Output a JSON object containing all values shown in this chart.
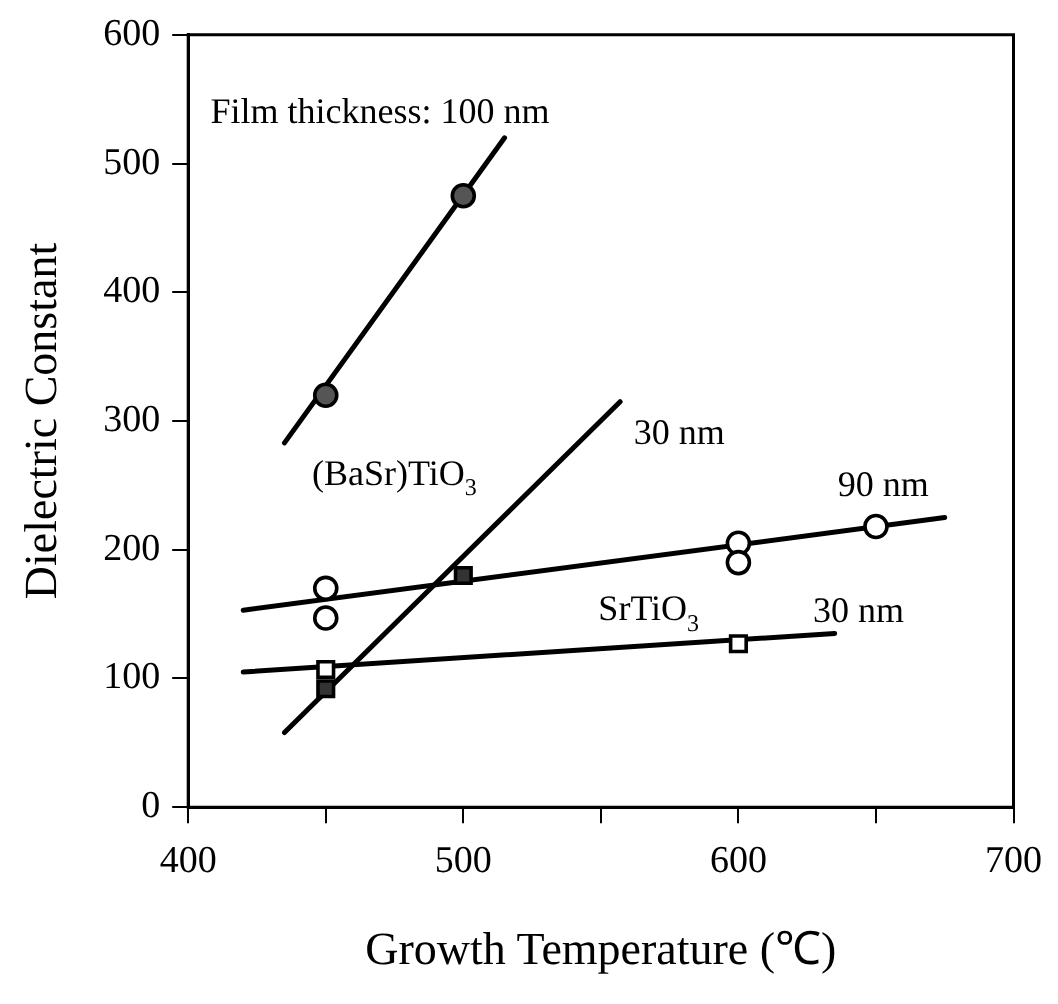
{
  "chart_data": {
    "type": "scatter",
    "xlabel": "Growth Temperature (℃)",
    "ylabel": "Dielectric Constant",
    "xlim": [
      400,
      700
    ],
    "xticks": [
      400,
      {
        "value": 450,
        "label": null
      },
      500,
      {
        "value": 550,
        "label": null
      },
      600,
      {
        "value": 650,
        "label": null
      },
      700
    ],
    "ylim": [
      0,
      600
    ],
    "yticks": [
      0,
      100,
      200,
      300,
      400,
      500,
      600
    ],
    "grid": false,
    "legend": false,
    "series": [
      {
        "type": "line",
        "color": "#000000",
        "x": [
          435,
          515
        ],
        "values": [
          283,
          520
        ]
      },
      {
        "type": "line",
        "color": "#000000",
        "x": [
          435,
          557
        ],
        "values": [
          58,
          315
        ]
      },
      {
        "type": "line",
        "color": "#000000",
        "x": [
          420,
          675
        ],
        "values": [
          153,
          225
        ]
      },
      {
        "type": "line",
        "color": "#000000",
        "x": [
          420,
          635
        ],
        "values": [
          105,
          135
        ]
      },
      {
        "type": "scatter",
        "marker": "circle",
        "color": "#555555",
        "x": [
          450,
          500
        ],
        "values": [
          320,
          475
        ]
      },
      {
        "type": "scatter",
        "marker": "square",
        "color": "#333333",
        "x": [
          450,
          500
        ],
        "values": [
          92,
          180
        ]
      },
      {
        "type": "scatter",
        "marker": "circle",
        "color": "#ffffff",
        "x": [
          450,
          450,
          600,
          600,
          650
        ],
        "values": [
          170,
          147,
          205,
          190,
          218
        ]
      },
      {
        "type": "scatter",
        "marker": "square",
        "color": "#ffffff",
        "x": [
          450,
          600
        ],
        "values": [
          107,
          127
        ]
      }
    ],
    "annotations": [
      "Film thickness: 100 nm",
      "(BaSr)TiO$_{3}$",
      "30 nm",
      "90 nm",
      "SrTiO$_{3}$",
      "30 nm"
    ]
  }
}
